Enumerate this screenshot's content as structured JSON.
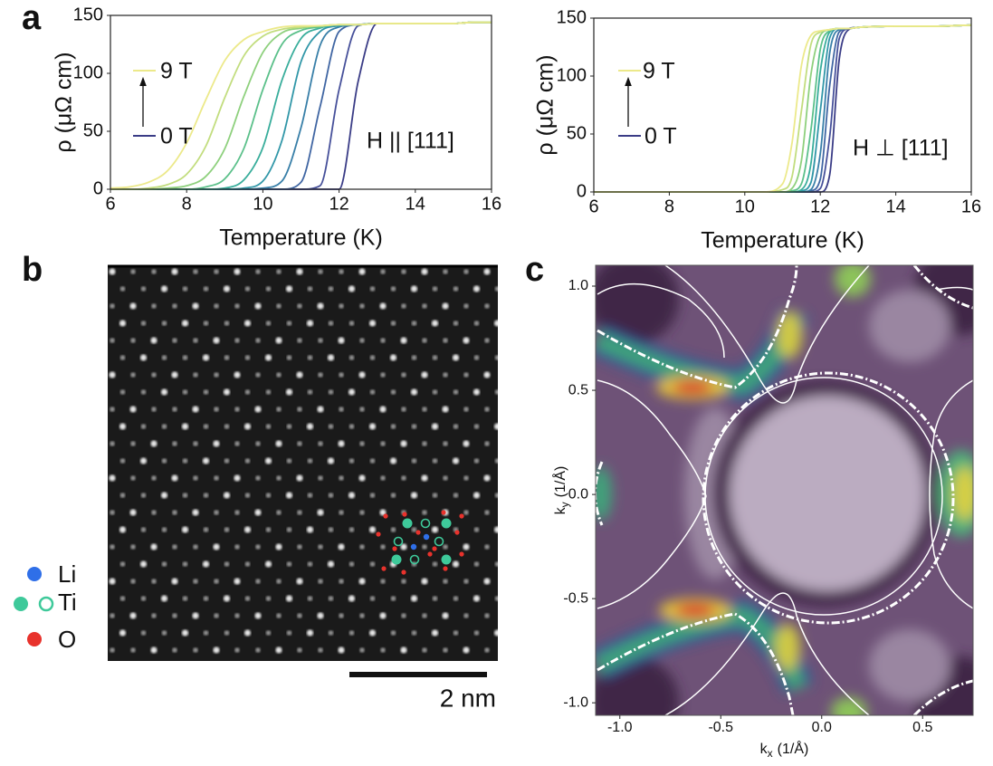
{
  "panel_labels": [
    "a",
    "b",
    "c"
  ],
  "stem_image": {
    "legend": [
      {
        "label": "Li",
        "color": "#2f6fe8"
      },
      {
        "label": "Ti",
        "color": "#3ec99a"
      },
      {
        "label": "O",
        "color": "#e8322c"
      }
    ],
    "scale_bar": "2 nm"
  },
  "chart_data": [
    {
      "type": "line",
      "ylabel": "ρ (μΩ cm)",
      "xlabel": "Temperature (K)",
      "xlim": [
        6,
        16
      ],
      "ylim": [
        0,
        150
      ],
      "xticks": [
        6,
        8,
        10,
        12,
        14,
        16
      ],
      "yticks": [
        0,
        50,
        100,
        150
      ],
      "annotations": [
        "9 T",
        "0 T",
        "H || [111]"
      ],
      "x": [
        6,
        6.5,
        7,
        7.5,
        8,
        8.5,
        9,
        9.5,
        10,
        10.5,
        11,
        11.5,
        12,
        12.5,
        13,
        13.5,
        14,
        14.5,
        15,
        15.5,
        16
      ],
      "series": [
        {
          "color": "#3a3c86",
          "values": [
            0,
            0,
            0,
            0,
            0,
            0,
            0,
            0,
            0,
            0,
            0,
            0,
            0,
            93,
            143,
            143,
            143,
            143,
            143,
            144,
            144
          ]
        },
        {
          "color": "#46509a",
          "values": [
            0,
            0,
            0,
            0,
            0,
            0,
            0,
            0,
            0,
            0,
            0,
            3,
            86,
            141,
            143,
            143,
            143,
            143,
            143,
            144,
            144
          ]
        },
        {
          "color": "#4066a3",
          "values": [
            0,
            0,
            0,
            0,
            0,
            0,
            0,
            0,
            0,
            0,
            6,
            71,
            136,
            142,
            143,
            143,
            143,
            143,
            143,
            144,
            144
          ]
        },
        {
          "color": "#387fa8",
          "values": [
            0,
            0,
            0,
            0,
            0,
            0,
            0,
            0,
            1,
            7,
            53,
            124,
            140,
            142,
            143,
            143,
            143,
            143,
            143,
            144,
            144
          ]
        },
        {
          "color": "#3197a8",
          "values": [
            0,
            0,
            0,
            0,
            0,
            0,
            0,
            1,
            7,
            42,
            110,
            136,
            141,
            142,
            143,
            143,
            143,
            143,
            143,
            144,
            144
          ]
        },
        {
          "color": "#38ad9b",
          "values": [
            0,
            0,
            0,
            0,
            0,
            0,
            1,
            8,
            36,
            94,
            130,
            139,
            142,
            142,
            143,
            143,
            143,
            143,
            143,
            144,
            144
          ]
        },
        {
          "color": "#5bc08a",
          "values": [
            0,
            0,
            0,
            0,
            0,
            2,
            9,
            35,
            86,
            125,
            137,
            140,
            142,
            142,
            143,
            143,
            143,
            143,
            143,
            144,
            144
          ]
        },
        {
          "color": "#8ed07d",
          "values": [
            0,
            0,
            0,
            1,
            3,
            11,
            35,
            80,
            118,
            135,
            139,
            141,
            142,
            142,
            143,
            143,
            143,
            143,
            143,
            144,
            144
          ]
        },
        {
          "color": "#c2dd7e",
          "values": [
            0,
            0,
            1,
            4,
            13,
            37,
            79,
            115,
            132,
            138,
            140,
            141,
            142,
            142,
            143,
            143,
            143,
            143,
            143,
            144,
            144
          ]
        },
        {
          "color": "#ece98a",
          "values": [
            1,
            2,
            6,
            16,
            40,
            77,
            111,
            129,
            136,
            140,
            141,
            141,
            142,
            142,
            143,
            143,
            143,
            143,
            143,
            144,
            144
          ]
        }
      ]
    },
    {
      "type": "line",
      "ylabel": "ρ (μΩ cm)",
      "xlabel": "Temperature (K)",
      "xlim": [
        6,
        16
      ],
      "ylim": [
        0,
        150
      ],
      "xticks": [
        6,
        8,
        10,
        12,
        14,
        16
      ],
      "yticks": [
        0,
        50,
        100,
        150
      ],
      "annotations": [
        "9 T",
        "0 T",
        "H ⊥ [111]"
      ],
      "x": [
        6,
        8,
        10,
        10.5,
        11,
        11.25,
        11.5,
        11.75,
        12,
        12.25,
        12.5,
        12.75,
        13,
        14,
        15,
        16
      ],
      "series": [
        {
          "color": "#3a3c86",
          "values": [
            0,
            0,
            0,
            0,
            0,
            0,
            0,
            0,
            0,
            15,
            114,
            140,
            142,
            143,
            143,
            144
          ]
        },
        {
          "color": "#46509a",
          "values": [
            0,
            0,
            0,
            0,
            0,
            0,
            0,
            0,
            3,
            48,
            132,
            141,
            142,
            143,
            143,
            144
          ]
        },
        {
          "color": "#4066a3",
          "values": [
            0,
            0,
            0,
            0,
            0,
            0,
            0,
            1,
            11,
            92,
            138,
            141,
            142,
            143,
            143,
            144
          ]
        },
        {
          "color": "#387fa8",
          "values": [
            0,
            0,
            0,
            0,
            0,
            0,
            0,
            2,
            33,
            120,
            140,
            141,
            142,
            143,
            143,
            144
          ]
        },
        {
          "color": "#3197a8",
          "values": [
            0,
            0,
            0,
            0,
            0,
            0,
            1,
            8,
            70,
            133,
            141,
            141,
            142,
            143,
            143,
            144
          ]
        },
        {
          "color": "#38ad9b",
          "values": [
            0,
            0,
            0,
            0,
            0,
            0,
            2,
            24,
            104,
            138,
            141,
            141,
            142,
            143,
            143,
            144
          ]
        },
        {
          "color": "#5bc08a",
          "values": [
            0,
            0,
            0,
            0,
            0,
            1,
            7,
            53,
            123,
            139,
            141,
            141,
            142,
            143,
            143,
            144
          ]
        },
        {
          "color": "#8ed07d",
          "values": [
            0,
            0,
            0,
            0,
            0,
            3,
            27,
            101,
            135,
            140,
            141,
            141,
            142,
            143,
            143,
            144
          ]
        },
        {
          "color": "#c2dd7e",
          "values": [
            0,
            0,
            0,
            0,
            2,
            13,
            70,
            127,
            138,
            140,
            141,
            141,
            142,
            143,
            143,
            144
          ]
        },
        {
          "color": "#ece98a",
          "values": [
            0,
            0,
            0,
            0,
            7,
            42,
            109,
            135,
            139,
            140,
            141,
            141,
            142,
            143,
            143,
            144
          ]
        }
      ]
    },
    {
      "type": "image",
      "xlabel": {
        "symbol": "k",
        "subscript": "x",
        "unit": "(1/Å)"
      },
      "ylabel": {
        "symbol": "k",
        "subscript": "y",
        "unit": "(1/Å)"
      },
      "xlim": [
        -1.12,
        0.75
      ],
      "ylim": [
        -1.06,
        1.1
      ],
      "xticks": [
        {
          "value": -1,
          "label": "-1.0"
        },
        {
          "value": -0.5,
          "label": "-0.5"
        },
        {
          "value": 0,
          "label": "0.0"
        },
        {
          "value": 0.5,
          "label": "0.5"
        }
      ],
      "yticks": [
        {
          "value": -1,
          "label": "-1.0"
        },
        {
          "value": -0.5,
          "label": "-0.5"
        },
        {
          "value": 0,
          "label": "0.0"
        },
        {
          "value": 0.5,
          "label": "0.5"
        },
        {
          "value": 1,
          "label": "1.0"
        }
      ]
    }
  ]
}
